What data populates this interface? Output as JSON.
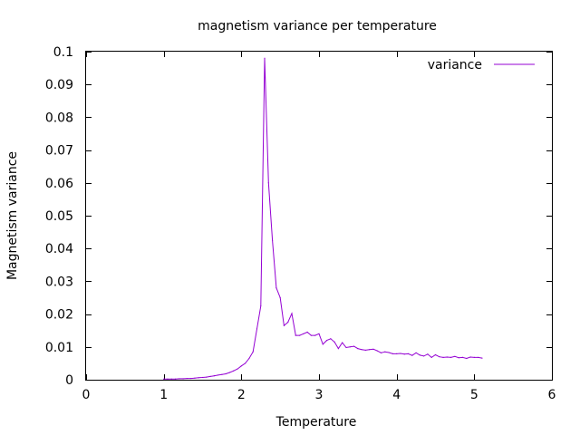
{
  "chart_data": {
    "type": "line",
    "title": "magnetism variance per temperature",
    "xlabel": "Temperature",
    "ylabel": "Magnetism variance",
    "xlim": [
      0,
      6
    ],
    "ylim": [
      0,
      0.1
    ],
    "xticks": [
      "0",
      "1",
      "2",
      "3",
      "4",
      "5",
      "6"
    ],
    "yticks": [
      "0",
      "0.01",
      "0.02",
      "0.03",
      "0.04",
      "0.05",
      "0.06",
      "0.07",
      "0.08",
      "0.09",
      "0.1"
    ],
    "grid": false,
    "legend_position": "top-right",
    "series": [
      {
        "name": "variance",
        "color": "#9400d3",
        "x": [
          1.0,
          1.05,
          1.1,
          1.15,
          1.2,
          1.25,
          1.3,
          1.35,
          1.4,
          1.45,
          1.5,
          1.55,
          1.6,
          1.65,
          1.7,
          1.75,
          1.8,
          1.85,
          1.9,
          1.95,
          2.0,
          2.05,
          2.1,
          2.15,
          2.2,
          2.25,
          2.3,
          2.35,
          2.4,
          2.45,
          2.5,
          2.55,
          2.6,
          2.65,
          2.7,
          2.75,
          2.8,
          2.85,
          2.9,
          2.95,
          3.0,
          3.05,
          3.1,
          3.15,
          3.2,
          3.25,
          3.3,
          3.35,
          3.4,
          3.45,
          3.5,
          3.55,
          3.6,
          3.65,
          3.7,
          3.75,
          3.8,
          3.85,
          3.9,
          3.95,
          4.0,
          4.05,
          4.1,
          4.15,
          4.2,
          4.25,
          4.3,
          4.35,
          4.4,
          4.45,
          4.5,
          4.55,
          4.6,
          4.65,
          4.7,
          4.75,
          4.8,
          4.85,
          4.9,
          4.95,
          5.0,
          5.05,
          5.1
        ],
        "y": [
          0.0002,
          0.0002,
          0.0002,
          0.0002,
          0.0003,
          0.0003,
          0.0004,
          0.0004,
          0.0005,
          0.0006,
          0.0007,
          0.0008,
          0.001,
          0.0012,
          0.0014,
          0.0016,
          0.0018,
          0.0022,
          0.0027,
          0.0033,
          0.0042,
          0.005,
          0.0065,
          0.0085,
          0.0155,
          0.0225,
          0.098,
          0.06,
          0.0425,
          0.028,
          0.025,
          0.0165,
          0.0175,
          0.0202,
          0.0135,
          0.0135,
          0.014,
          0.0145,
          0.0135,
          0.0135,
          0.014,
          0.0108,
          0.012,
          0.0125,
          0.0115,
          0.0095,
          0.0113,
          0.0098,
          0.01,
          0.0102,
          0.0095,
          0.0092,
          0.009,
          0.0092,
          0.0093,
          0.0088,
          0.0082,
          0.0085,
          0.0083,
          0.0079,
          0.0079,
          0.008,
          0.0078,
          0.0079,
          0.0074,
          0.0082,
          0.0075,
          0.0072,
          0.0078,
          0.0068,
          0.0076,
          0.007,
          0.0068,
          0.0069,
          0.0068,
          0.0071,
          0.0067,
          0.0068,
          0.0065,
          0.0069,
          0.0068,
          0.0068,
          0.0066
        ]
      }
    ]
  }
}
